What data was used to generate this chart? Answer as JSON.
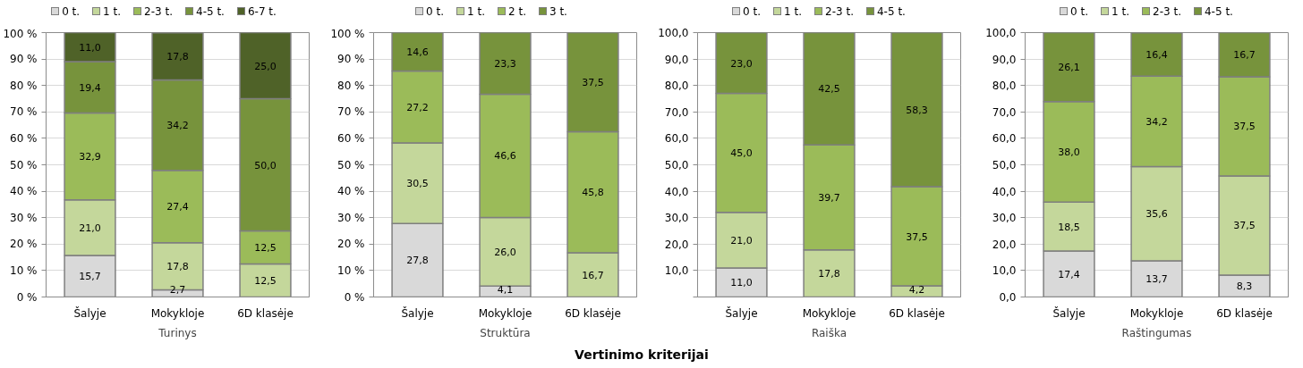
{
  "chart_data": [
    {
      "type": "bar",
      "stacked": true,
      "xlabel": "Turinys",
      "categories": [
        "Šalyje",
        "Mokykloje",
        "6D klasėje"
      ],
      "legend": "top",
      "grid": "y",
      "ylim": [
        0,
        100
      ],
      "yticks": [
        {
          "value": 0,
          "label": "0 %"
        },
        {
          "value": 10,
          "label": "10 %"
        },
        {
          "value": 20,
          "label": "20 %"
        },
        {
          "value": 30,
          "label": "30 %"
        },
        {
          "value": 40,
          "label": "40 %"
        },
        {
          "value": 50,
          "label": "50 %"
        },
        {
          "value": 60,
          "label": "60 %"
        },
        {
          "value": 70,
          "label": "70 %"
        },
        {
          "value": 80,
          "label": "80 %"
        },
        {
          "value": 90,
          "label": "90 %"
        },
        {
          "value": 100,
          "label": "100 %"
        }
      ],
      "series": [
        {
          "name": "0 t.",
          "color": "#d9d9d9",
          "values": [
            15.7,
            2.7,
            0
          ],
          "value_labels": [
            "15,7",
            "2,7",
            null
          ]
        },
        {
          "name": "1 t.",
          "color": "#c4d79b",
          "values": [
            21.0,
            17.8,
            12.5
          ],
          "value_labels": [
            "21,0",
            "17,8",
            "12,5"
          ]
        },
        {
          "name": "2-3 t.",
          "color": "#9bbb59",
          "values": [
            32.9,
            27.4,
            12.5
          ],
          "value_labels": [
            "32,9",
            "27,4",
            "12,5"
          ]
        },
        {
          "name": "4-5 t.",
          "color": "#77933c",
          "values": [
            19.4,
            34.2,
            50.0
          ],
          "value_labels": [
            "19,4",
            "34,2",
            "50,0"
          ]
        },
        {
          "name": "6-7 t.",
          "color": "#4f6228",
          "values": [
            11.0,
            17.8,
            25.0
          ],
          "value_labels": [
            "11,0",
            "17,8",
            "25,0"
          ]
        }
      ]
    },
    {
      "type": "bar",
      "stacked": true,
      "xlabel": "Struktūra",
      "categories": [
        "Šalyje",
        "Mokykloje",
        "6D klasėje"
      ],
      "legend": "top",
      "grid": "y",
      "ylim": [
        0,
        100
      ],
      "yticks": [
        {
          "value": 0,
          "label": "0 %"
        },
        {
          "value": 10,
          "label": "10 %"
        },
        {
          "value": 20,
          "label": "20 %"
        },
        {
          "value": 30,
          "label": "30 %"
        },
        {
          "value": 40,
          "label": "40 %"
        },
        {
          "value": 50,
          "label": "50 %"
        },
        {
          "value": 60,
          "label": "60 %"
        },
        {
          "value": 70,
          "label": "70 %"
        },
        {
          "value": 80,
          "label": "80 %"
        },
        {
          "value": 90,
          "label": "90 %"
        },
        {
          "value": 100,
          "label": "100 %"
        }
      ],
      "annotations": [
        "Vertinimo kriterijai"
      ],
      "series": [
        {
          "name": "0 t.",
          "color": "#d9d9d9",
          "values": [
            27.8,
            4.1,
            0
          ],
          "value_labels": [
            "27,8",
            "4,1",
            null
          ]
        },
        {
          "name": "1 t.",
          "color": "#c4d79b",
          "values": [
            30.5,
            26.0,
            16.7
          ],
          "value_labels": [
            "30,5",
            "26,0",
            "16,7"
          ]
        },
        {
          "name": "2 t.",
          "color": "#9bbb59",
          "values": [
            27.2,
            46.6,
            45.8
          ],
          "value_labels": [
            "27,2",
            "46,6",
            "45,8"
          ]
        },
        {
          "name": "3 t.",
          "color": "#77933c",
          "values": [
            14.6,
            23.3,
            37.5
          ],
          "value_labels": [
            "14,6",
            "23,3",
            "37,5"
          ]
        }
      ]
    },
    {
      "type": "bar",
      "stacked": true,
      "xlabel": "Raiška",
      "categories": [
        "Šalyje",
        "Mokykloje",
        "6D klasėje"
      ],
      "legend": "top",
      "grid": "y",
      "ylim": [
        0,
        100
      ],
      "yticks": [
        {
          "value": 0,
          "label": null
        },
        {
          "value": 10,
          "label": "10,0"
        },
        {
          "value": 20,
          "label": "20,0"
        },
        {
          "value": 30,
          "label": "30,0"
        },
        {
          "value": 40,
          "label": "40,0"
        },
        {
          "value": 50,
          "label": "50,0"
        },
        {
          "value": 60,
          "label": "60,0"
        },
        {
          "value": 70,
          "label": "70,0"
        },
        {
          "value": 80,
          "label": "80,0"
        },
        {
          "value": 90,
          "label": "90,0"
        },
        {
          "value": 100,
          "label": "100,0"
        }
      ],
      "series": [
        {
          "name": "0 t.",
          "color": "#d9d9d9",
          "values": [
            11.0,
            0,
            0
          ],
          "value_labels": [
            "11,0",
            null,
            null
          ]
        },
        {
          "name": "1 t.",
          "color": "#c4d79b",
          "values": [
            21.0,
            17.8,
            4.2
          ],
          "value_labels": [
            "21,0",
            "17,8",
            "4,2"
          ]
        },
        {
          "name": "2-3 t.",
          "color": "#9bbb59",
          "values": [
            45.0,
            39.7,
            37.5
          ],
          "value_labels": [
            "45,0",
            "39,7",
            "37,5"
          ]
        },
        {
          "name": "4-5 t.",
          "color": "#77933c",
          "values": [
            23.0,
            42.5,
            58.3
          ],
          "value_labels": [
            "23,0",
            "42,5",
            "58,3"
          ]
        }
      ]
    },
    {
      "type": "bar",
      "stacked": true,
      "xlabel": "Raštingumas",
      "categories": [
        "Šalyje",
        "Mokykloje",
        "6D klasėje"
      ],
      "legend": "top",
      "grid": "y",
      "ylim": [
        0,
        100
      ],
      "yticks": [
        {
          "value": 0,
          "label": "0,0"
        },
        {
          "value": 10,
          "label": "10,0"
        },
        {
          "value": 20,
          "label": "20,0"
        },
        {
          "value": 30,
          "label": "30,0"
        },
        {
          "value": 40,
          "label": "40,0"
        },
        {
          "value": 50,
          "label": "50,0"
        },
        {
          "value": 60,
          "label": "60,0"
        },
        {
          "value": 70,
          "label": "70,0"
        },
        {
          "value": 80,
          "label": "80,0"
        },
        {
          "value": 90,
          "label": "90,0"
        },
        {
          "value": 100,
          "label": "100,0"
        }
      ],
      "series": [
        {
          "name": "0 t.",
          "color": "#d9d9d9",
          "values": [
            17.4,
            13.7,
            8.3
          ],
          "value_labels": [
            "17,4",
            "13,7",
            "8,3"
          ]
        },
        {
          "name": "1 t.",
          "color": "#c4d79b",
          "values": [
            18.5,
            35.6,
            37.5
          ],
          "value_labels": [
            "18,5",
            "35,6",
            "37,5"
          ]
        },
        {
          "name": "2-3 t.",
          "color": "#9bbb59",
          "values": [
            38.0,
            34.2,
            37.5
          ],
          "value_labels": [
            "38,0",
            "34,2",
            "37,5"
          ]
        },
        {
          "name": "4-5 t.",
          "color": "#77933c",
          "values": [
            26.1,
            16.4,
            16.7
          ],
          "value_labels": [
            "26,1",
            "16,4",
            "16,7"
          ]
        }
      ]
    }
  ]
}
